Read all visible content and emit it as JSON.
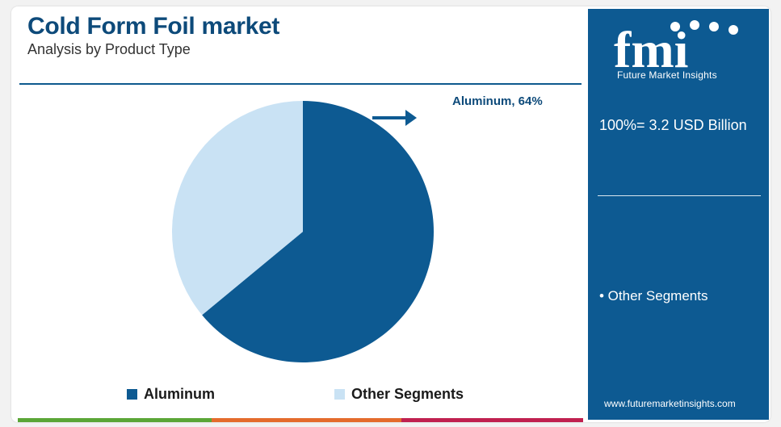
{
  "header": {
    "title": "Cold Form Foil market",
    "subtitle": "Analysis by Product Type"
  },
  "chart_data": {
    "type": "pie",
    "slices": [
      {
        "name": "Aluminum",
        "value": 64,
        "color": "#0d5a92"
      },
      {
        "name": "Other Segments",
        "value": 36,
        "color": "#c9e2f4"
      }
    ],
    "annotation": "Aluminum, 64%",
    "legend": [
      "Aluminum",
      "Other Segments"
    ],
    "legend_position": "bottom"
  },
  "panel": {
    "logo_text": "fmi",
    "logo_subtext": "Future Market Insights",
    "total_label": "100%= 3.2 USD Billion",
    "other_label": "• Other Segments",
    "url": "www.futuremarketinsights.com"
  },
  "colors": {
    "primary": "#0d5a92",
    "light": "#c9e2f4",
    "title": "#0d4a7a",
    "bottom_bar": [
      "#5aa637",
      "#e46b2c",
      "#c0204f"
    ]
  }
}
